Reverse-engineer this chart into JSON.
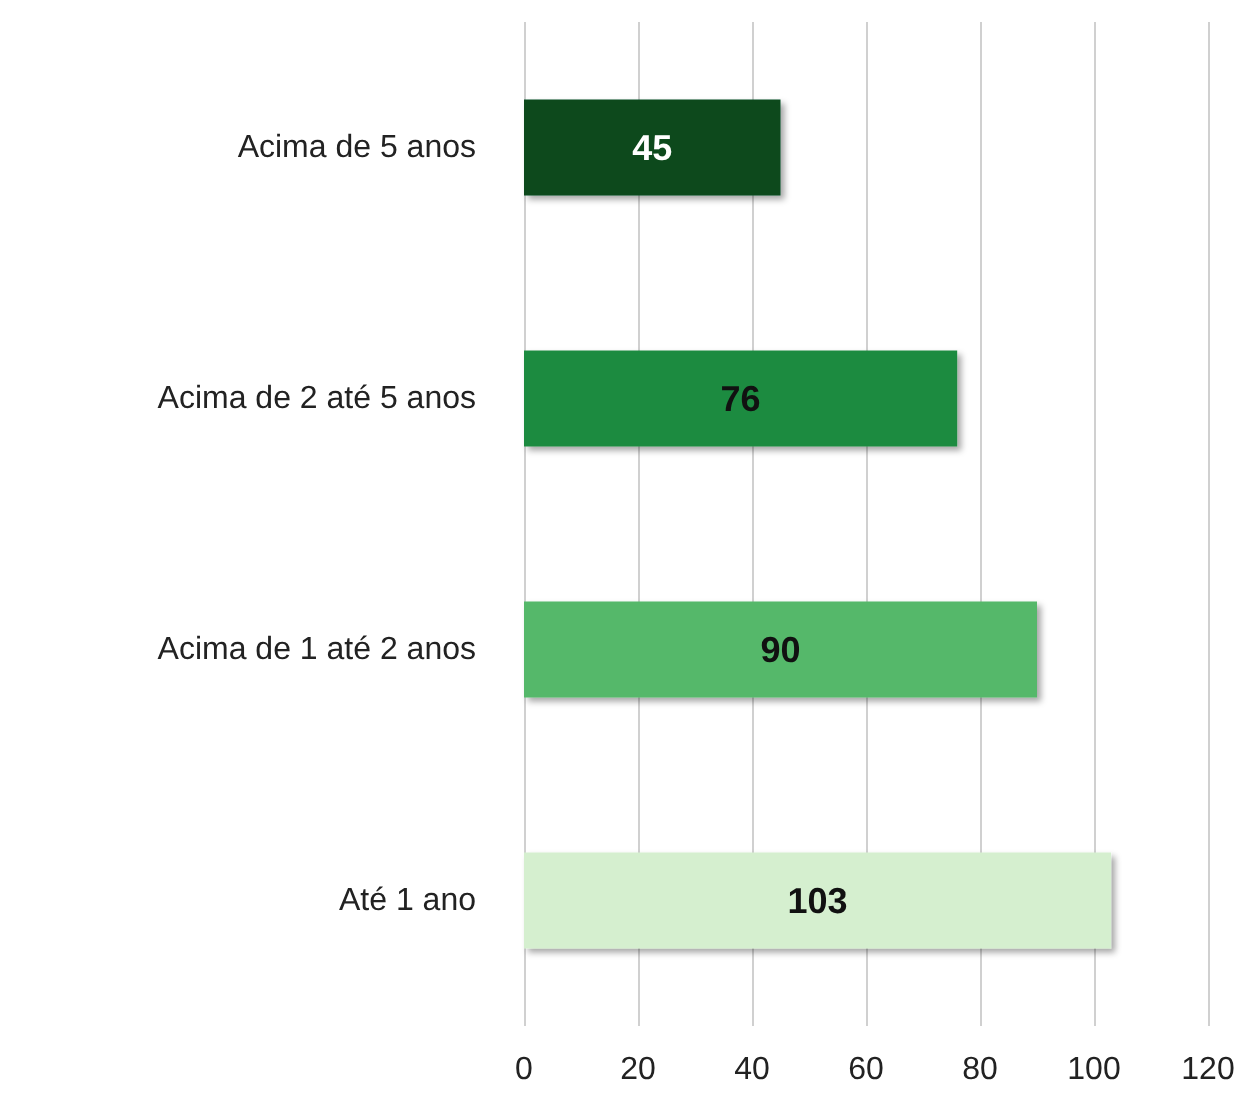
{
  "chart_data": {
    "type": "bar",
    "orientation": "horizontal",
    "categories": [
      "Acima de 5 anos",
      "Acima de 2 até 5 anos",
      "Acima de 1 até 2 anos",
      "Até 1 ano"
    ],
    "values": [
      45,
      76,
      90,
      103
    ],
    "colors": [
      "#0b4a1f",
      "#1f8b40",
      "#55b86a",
      "#d5efcf"
    ],
    "xlim": [
      0,
      120
    ],
    "xticks": [
      0,
      20,
      40,
      60,
      80,
      100,
      120
    ],
    "grid": "x",
    "data_labels": true
  }
}
